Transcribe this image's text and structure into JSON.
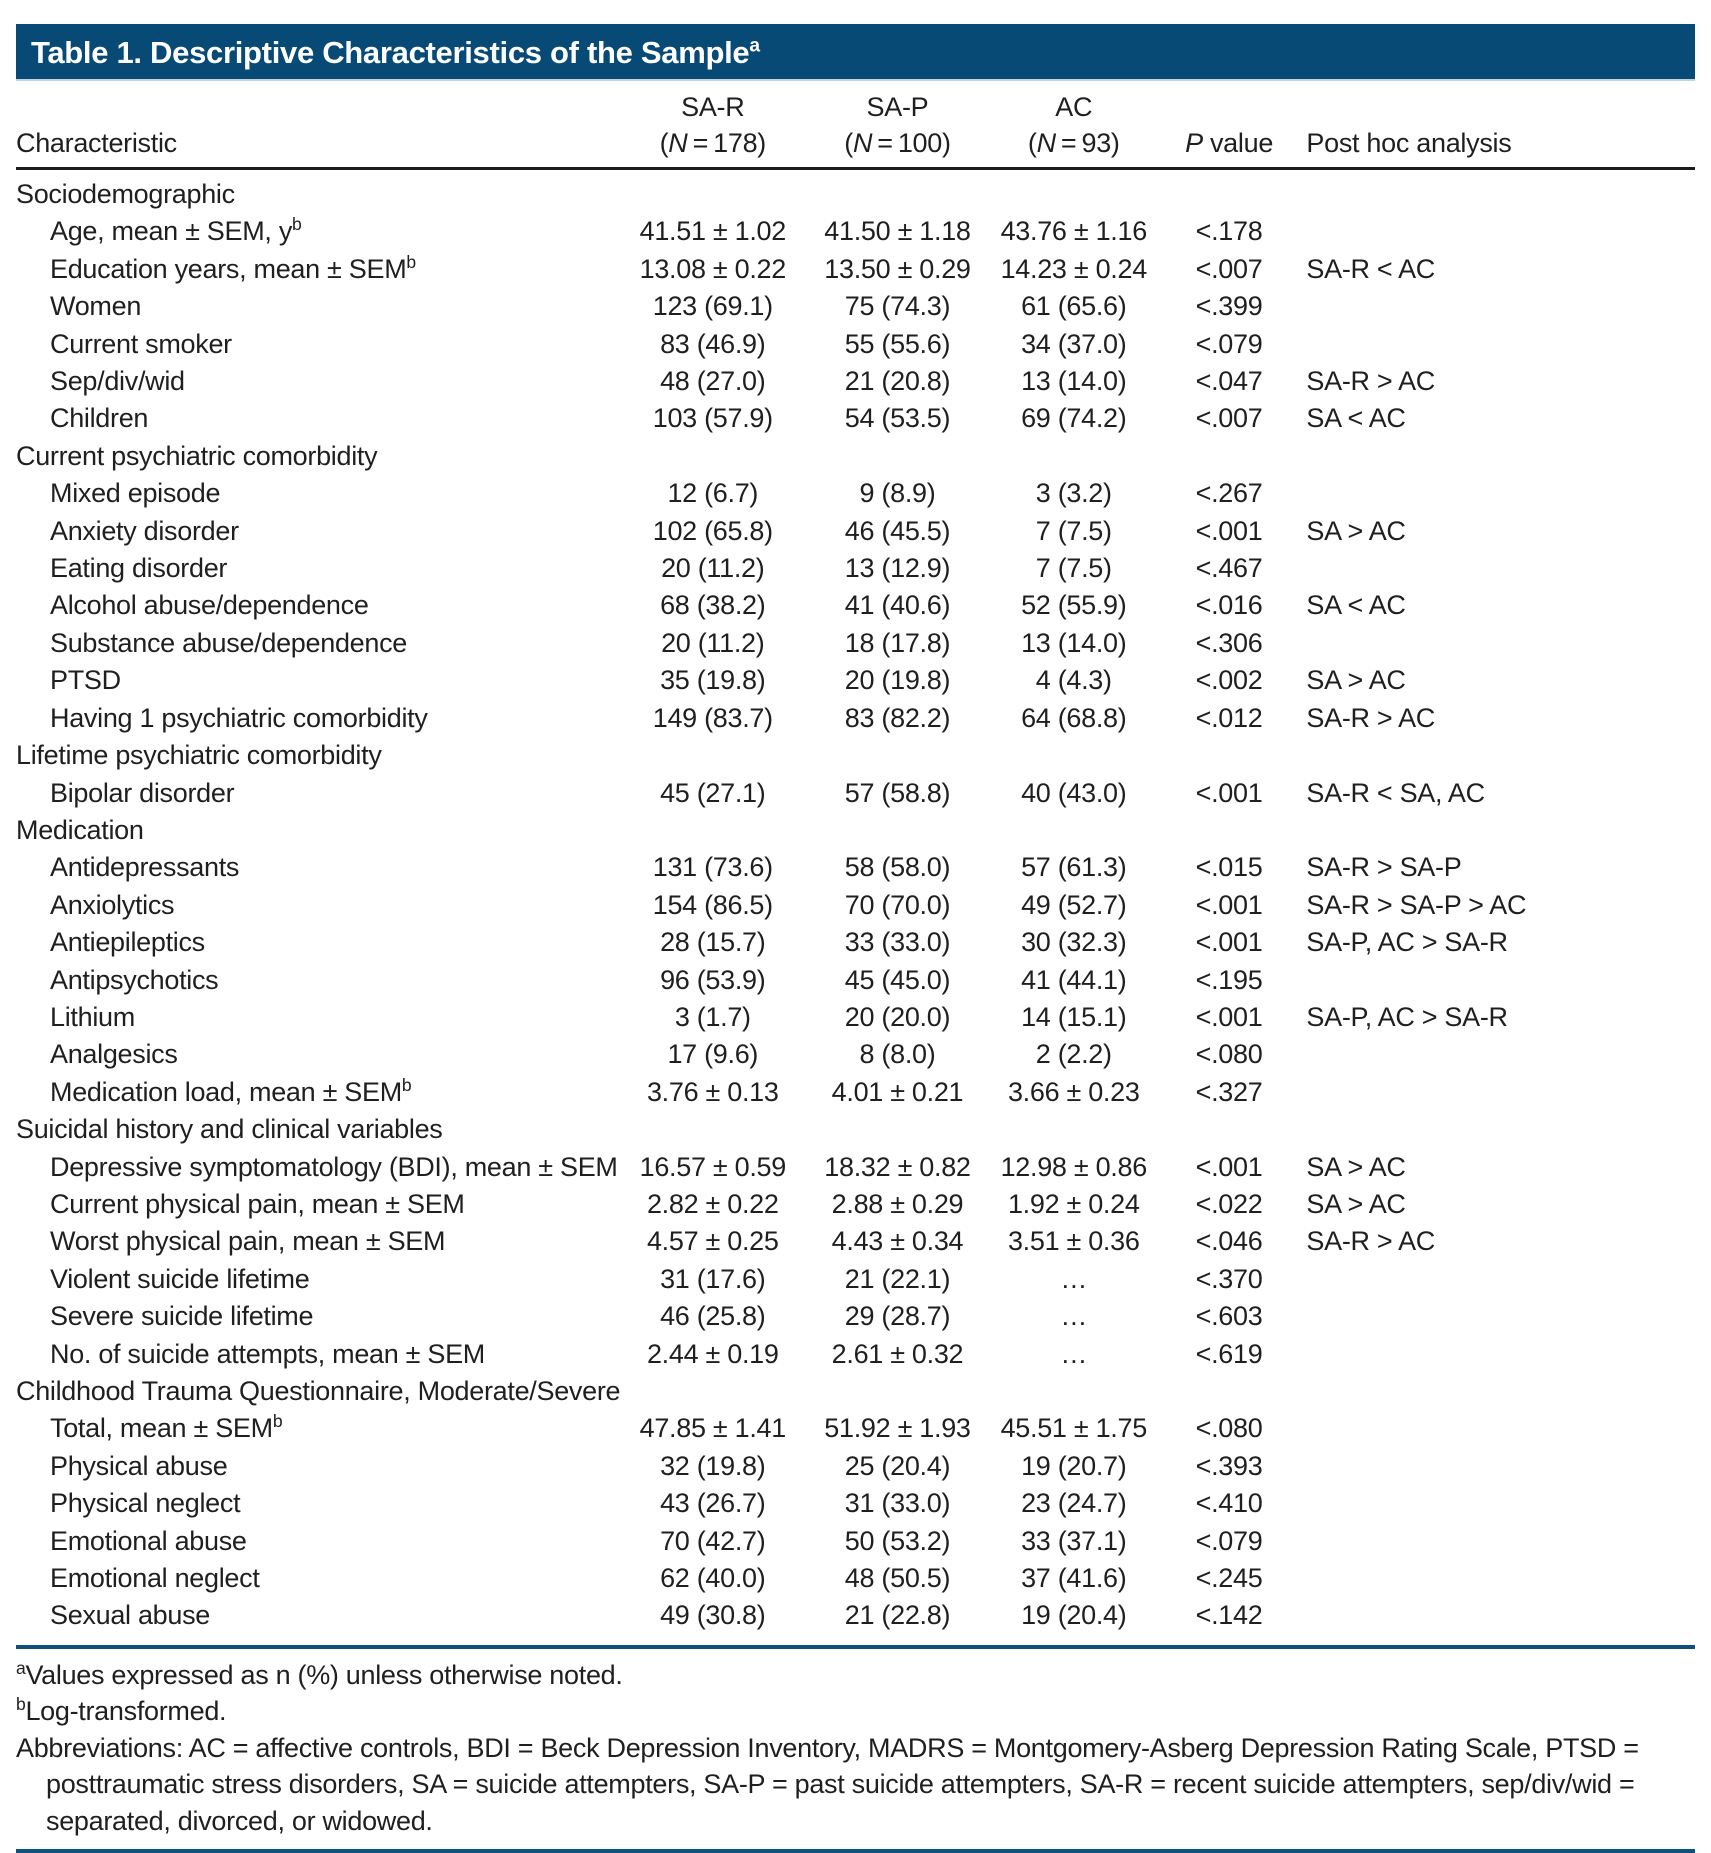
{
  "colors": {
    "header_bar_bg": "#084a76",
    "header_bar_text": "#ffffff",
    "rule_blue": "#0e507e",
    "rule_black": "#1c1c1c",
    "body_text": "#1f1f1f"
  },
  "title": {
    "text": "Table 1. Descriptive Characteristics of the Sample",
    "sup": "a"
  },
  "header": {
    "characteristic": "Characteristic",
    "groups": [
      {
        "name": "SA-R",
        "n_prefix": "(",
        "n_symbol": "N",
        "n_rest": " = 178)"
      },
      {
        "name": "SA-P",
        "n_prefix": "(",
        "n_symbol": "N",
        "n_rest": " = 100)"
      },
      {
        "name": "AC",
        "n_prefix": "(",
        "n_symbol": "N",
        "n_rest": " = 93)"
      }
    ],
    "p_symbol": "P",
    "p_rest": " value",
    "posthoc": "Post hoc analysis"
  },
  "table": {
    "rows": [
      {
        "section": true,
        "label": "Sociodemographic",
        "sup": "",
        "values": [
          "",
          "",
          "",
          "",
          ""
        ]
      },
      {
        "section": false,
        "label": "Age, mean ± SEM, y",
        "sup": "b",
        "values": [
          "41.51 ± 1.02",
          "41.50 ± 1.18",
          "43.76 ± 1.16",
          "<.178",
          ""
        ]
      },
      {
        "section": false,
        "label": "Education years, mean ± SEM",
        "sup": "b",
        "values": [
          "13.08 ± 0.22",
          "13.50 ± 0.29",
          "14.23 ± 0.24",
          "<.007",
          "SA-R < AC"
        ]
      },
      {
        "section": false,
        "label": "Women",
        "sup": "",
        "values": [
          "123 (69.1)",
          "75 (74.3)",
          "61 (65.6)",
          "<.399",
          ""
        ]
      },
      {
        "section": false,
        "label": "Current smoker",
        "sup": "",
        "values": [
          "83 (46.9)",
          "55 (55.6)",
          "34 (37.0)",
          "<.079",
          ""
        ]
      },
      {
        "section": false,
        "label": "Sep/div/wid",
        "sup": "",
        "values": [
          "48 (27.0)",
          "21 (20.8)",
          "13 (14.0)",
          "<.047",
          "SA-R > AC"
        ]
      },
      {
        "section": false,
        "label": "Children",
        "sup": "",
        "values": [
          "103 (57.9)",
          "54 (53.5)",
          "69 (74.2)",
          "<.007",
          "SA < AC"
        ]
      },
      {
        "section": true,
        "label": "Current psychiatric comorbidity",
        "sup": "",
        "values": [
          "",
          "",
          "",
          "",
          ""
        ]
      },
      {
        "section": false,
        "label": "Mixed episode",
        "sup": "",
        "values": [
          "12 (6.7)",
          "9 (8.9)",
          "3 (3.2)",
          "<.267",
          ""
        ]
      },
      {
        "section": false,
        "label": "Anxiety disorder",
        "sup": "",
        "values": [
          "102 (65.8)",
          "46 (45.5)",
          "7 (7.5)",
          "<.001",
          "SA > AC"
        ]
      },
      {
        "section": false,
        "label": "Eating disorder",
        "sup": "",
        "values": [
          "20 (11.2)",
          "13 (12.9)",
          "7 (7.5)",
          "<.467",
          ""
        ]
      },
      {
        "section": false,
        "label": "Alcohol abuse/dependence",
        "sup": "",
        "values": [
          "68 (38.2)",
          "41 (40.6)",
          "52 (55.9)",
          "<.016",
          "SA < AC"
        ]
      },
      {
        "section": false,
        "label": "Substance abuse/dependence",
        "sup": "",
        "values": [
          "20 (11.2)",
          "18 (17.8)",
          "13 (14.0)",
          "<.306",
          ""
        ]
      },
      {
        "section": false,
        "label": "PTSD",
        "sup": "",
        "values": [
          "35 (19.8)",
          "20 (19.8)",
          "4 (4.3)",
          "<.002",
          "SA > AC"
        ]
      },
      {
        "section": false,
        "label": "Having 1 psychiatric comorbidity",
        "sup": "",
        "values": [
          "149 (83.7)",
          "83 (82.2)",
          "64 (68.8)",
          "<.012",
          "SA-R > AC"
        ]
      },
      {
        "section": true,
        "label": "Lifetime psychiatric comorbidity",
        "sup": "",
        "values": [
          "",
          "",
          "",
          "",
          ""
        ]
      },
      {
        "section": false,
        "label": "Bipolar disorder",
        "sup": "",
        "values": [
          "45 (27.1)",
          "57 (58.8)",
          "40 (43.0)",
          "<.001",
          "SA-R < SA, AC"
        ]
      },
      {
        "section": true,
        "label": "Medication",
        "sup": "",
        "values": [
          "",
          "",
          "",
          "",
          ""
        ]
      },
      {
        "section": false,
        "label": "Antidepressants",
        "sup": "",
        "values": [
          "131 (73.6)",
          "58 (58.0)",
          "57 (61.3)",
          "<.015",
          "SA-R > SA-P"
        ]
      },
      {
        "section": false,
        "label": "Anxiolytics",
        "sup": "",
        "values": [
          "154 (86.5)",
          "70 (70.0)",
          "49 (52.7)",
          "<.001",
          "SA-R > SA-P > AC"
        ]
      },
      {
        "section": false,
        "label": "Antiepileptics",
        "sup": "",
        "values": [
          "28 (15.7)",
          "33 (33.0)",
          "30 (32.3)",
          "<.001",
          "SA-P, AC > SA-R"
        ]
      },
      {
        "section": false,
        "label": "Antipsychotics",
        "sup": "",
        "values": [
          "96 (53.9)",
          "45 (45.0)",
          "41 (44.1)",
          "<.195",
          ""
        ]
      },
      {
        "section": false,
        "label": "Lithium",
        "sup": "",
        "values": [
          "3 (1.7)",
          "20 (20.0)",
          "14 (15.1)",
          "<.001",
          "SA-P, AC > SA-R"
        ]
      },
      {
        "section": false,
        "label": "Analgesics",
        "sup": "",
        "values": [
          "17 (9.6)",
          "8 (8.0)",
          "2 (2.2)",
          "<.080",
          ""
        ]
      },
      {
        "section": false,
        "label": "Medication load, mean ± SEM",
        "sup": "b",
        "values": [
          "3.76 ± 0.13",
          "4.01 ± 0.21",
          "3.66 ± 0.23",
          "<.327",
          ""
        ]
      },
      {
        "section": true,
        "label": "Suicidal history and clinical variables",
        "sup": "",
        "values": [
          "",
          "",
          "",
          "",
          ""
        ]
      },
      {
        "section": false,
        "label": "Depressive symptomatology (BDI), mean ± SEM",
        "sup": "",
        "values": [
          "16.57 ± 0.59",
          "18.32 ± 0.82",
          "12.98 ± 0.86",
          "<.001",
          "SA > AC"
        ]
      },
      {
        "section": false,
        "label": "Current physical pain, mean ± SEM",
        "sup": "",
        "values": [
          "2.82 ± 0.22",
          "2.88 ± 0.29",
          "1.92 ± 0.24",
          "<.022",
          "SA > AC"
        ]
      },
      {
        "section": false,
        "label": "Worst physical pain, mean ± SEM",
        "sup": "",
        "values": [
          "4.57 ± 0.25",
          "4.43 ± 0.34",
          "3.51 ± 0.36",
          "<.046",
          "SA-R > AC"
        ]
      },
      {
        "section": false,
        "label": "Violent suicide lifetime",
        "sup": "",
        "values": [
          "31 (17.6)",
          "21 (22.1)",
          "…",
          "<.370",
          ""
        ]
      },
      {
        "section": false,
        "label": "Severe suicide lifetime",
        "sup": "",
        "values": [
          "46 (25.8)",
          "29 (28.7)",
          "…",
          "<.603",
          ""
        ]
      },
      {
        "section": false,
        "label": "No. of suicide attempts, mean ± SEM",
        "sup": "",
        "values": [
          "2.44 ± 0.19",
          "2.61 ± 0.32",
          "…",
          "<.619",
          ""
        ]
      },
      {
        "section": true,
        "label": "Childhood Trauma Questionnaire, Moderate/Severe",
        "sup": "",
        "values": [
          "",
          "",
          "",
          "",
          ""
        ]
      },
      {
        "section": false,
        "label": "Total, mean ± SEM",
        "sup": "b",
        "values": [
          "47.85 ± 1.41",
          "51.92 ± 1.93",
          "45.51 ± 1.75",
          "<.080",
          ""
        ]
      },
      {
        "section": false,
        "label": "Physical abuse",
        "sup": "",
        "values": [
          "32 (19.8)",
          "25 (20.4)",
          "19 (20.7)",
          "<.393",
          ""
        ]
      },
      {
        "section": false,
        "label": "Physical neglect",
        "sup": "",
        "values": [
          "43 (26.7)",
          "31 (33.0)",
          "23 (24.7)",
          "<.410",
          ""
        ]
      },
      {
        "section": false,
        "label": "Emotional abuse",
        "sup": "",
        "values": [
          "70 (42.7)",
          "50 (53.2)",
          "33 (37.1)",
          "<.079",
          ""
        ]
      },
      {
        "section": false,
        "label": "Emotional neglect",
        "sup": "",
        "values": [
          "62 (40.0)",
          "48 (50.5)",
          "37 (41.6)",
          "<.245",
          ""
        ]
      },
      {
        "section": false,
        "label": "Sexual abuse",
        "sup": "",
        "values": [
          "49 (30.8)",
          "21 (22.8)",
          "19 (20.4)",
          "<.142",
          ""
        ]
      }
    ]
  },
  "footnotes": [
    {
      "sup": "a",
      "text": "Values expressed as n (%) unless otherwise noted.",
      "hanging": false
    },
    {
      "sup": "b",
      "text": "Log-transformed.",
      "hanging": false
    },
    {
      "sup": "",
      "text": "Abbreviations: AC = affective controls, BDI = Beck Depression Inventory, MADRS = Montgomery-Asberg Depression Rating Scale, PTSD = posttraumatic stress disorders, SA = suicide attempters, SA-P = past suicide attempters, SA-R = recent suicide attempters, sep/div/wid = separated, divorced, or widowed.",
      "hanging": true
    }
  ]
}
